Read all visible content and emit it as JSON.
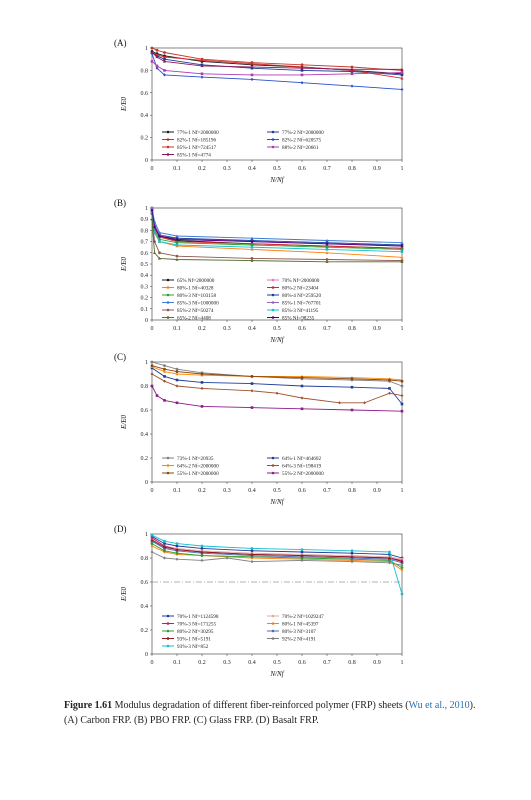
{
  "caption": {
    "figure_label": "Figure 1.61",
    "text_before_cite": "Modulus degradation of different fiber-reinforced polymer (FRP) sheets (",
    "cite": "Wu et al., 2010",
    "text_after_cite": "). (A) Carbon FRP. (B) PBO FRP. (C) Glass FRP. (D) Basalt FRP."
  },
  "chart_data": [
    {
      "type": "line",
      "panel_label": "(A)",
      "xlabel": "N/Nf",
      "ylabel": "E/E0",
      "xlim": [
        0,
        1
      ],
      "ylim": [
        0,
        1
      ],
      "x_ticks": [
        "0",
        "0.1",
        "0.2",
        "0.3",
        "0.4",
        "0.5",
        "0.6",
        "0.7",
        "0.8",
        "0.9",
        "1"
      ],
      "y_ticks": [
        "0",
        "0.2",
        "0.4",
        "0.6",
        "0.8",
        "1"
      ],
      "grid": false,
      "legend_position": "lower-left",
      "series": [
        {
          "name": "77%-1  Nf=2000000",
          "color": "#1a1a1a",
          "x": [
            0,
            0.02,
            0.05,
            0.2,
            0.4,
            0.6,
            0.8,
            1.0
          ],
          "y": [
            0.97,
            0.95,
            0.93,
            0.88,
            0.85,
            0.83,
            0.8,
            0.77
          ]
        },
        {
          "name": "77%-2  Nf=2000000",
          "color": "#1f3d99",
          "x": [
            0,
            0.02,
            0.05,
            0.2,
            0.4,
            0.6,
            0.8,
            1.0
          ],
          "y": [
            0.96,
            0.93,
            0.9,
            0.85,
            0.82,
            0.8,
            0.79,
            0.76
          ]
        },
        {
          "name": "82%-1  Nf=185196",
          "color": "#d62728",
          "x": [
            0,
            0.02,
            0.05,
            0.2,
            0.4,
            0.6,
            0.8,
            1.0
          ],
          "y": [
            0.96,
            0.94,
            0.92,
            0.89,
            0.86,
            0.83,
            0.8,
            0.73
          ]
        },
        {
          "name": "82%-2  Nf=620575",
          "color": "#2a4fcf",
          "x": [
            0,
            0.02,
            0.05,
            0.2,
            0.4,
            0.6,
            0.8,
            1.0
          ],
          "y": [
            0.95,
            0.82,
            0.76,
            0.74,
            0.72,
            0.69,
            0.66,
            0.63
          ]
        },
        {
          "name": "85%-1  Nf=724517",
          "color": "#c0392b",
          "x": [
            0,
            0.02,
            0.05,
            0.2,
            0.4,
            0.6,
            0.8,
            1.0
          ],
          "y": [
            1.0,
            0.98,
            0.96,
            0.9,
            0.87,
            0.85,
            0.83,
            0.8
          ]
        },
        {
          "name": "88%-2  Nf=20661",
          "color": "#b03ab0",
          "x": [
            0,
            0.02,
            0.05,
            0.2,
            0.4,
            0.6,
            0.8,
            1.0
          ],
          "y": [
            0.88,
            0.84,
            0.8,
            0.77,
            0.76,
            0.76,
            0.77,
            0.78
          ]
        },
        {
          "name": "85%-1  Nf=4774",
          "color": "#8b1a5a",
          "x": [
            0,
            0.02,
            0.05,
            0.2,
            0.4,
            0.6,
            0.8,
            1.0
          ],
          "y": [
            0.96,
            0.92,
            0.88,
            0.84,
            0.83,
            0.82,
            0.81,
            0.81
          ]
        }
      ]
    },
    {
      "type": "line",
      "panel_label": "(B)",
      "xlabel": "N/Nf",
      "ylabel": "E/E0",
      "xlim": [
        0,
        1
      ],
      "ylim": [
        0,
        1
      ],
      "x_ticks": [
        "0",
        "0.1",
        "0.2",
        "0.3",
        "0.4",
        "0.5",
        "0.6",
        "0.7",
        "0.8",
        "0.9",
        "1"
      ],
      "y_ticks": [
        "0",
        "0.1",
        "0.2",
        "0.3",
        "0.4",
        "0.5",
        "0.6",
        "0.7",
        "0.8",
        "0.9",
        "1"
      ],
      "grid": false,
      "legend_position": "lower-left",
      "series": [
        {
          "name": "65%  Nf=2000000",
          "color": "#1a1a1a",
          "x": [
            0,
            0.01,
            0.03,
            0.1,
            0.4,
            0.7,
            1.0
          ],
          "y": [
            1.0,
            0.85,
            0.75,
            0.71,
            0.68,
            0.66,
            0.64
          ]
        },
        {
          "name": "70%  Nf=2000000",
          "color": "#e377c2",
          "x": [
            0,
            0.01,
            0.03,
            0.1,
            0.4,
            0.7,
            1.0
          ],
          "y": [
            1.0,
            0.86,
            0.76,
            0.73,
            0.7,
            0.68,
            0.66
          ]
        },
        {
          "name": "80%-1  Nf=40328",
          "color": "#ff7f0e",
          "x": [
            0,
            0.01,
            0.03,
            0.1,
            0.4,
            0.7,
            1.0
          ],
          "y": [
            0.95,
            0.78,
            0.7,
            0.66,
            0.63,
            0.6,
            0.56
          ]
        },
        {
          "name": "80%-2  Nf=23404",
          "color": "#d62728",
          "x": [
            0,
            0.01,
            0.03,
            0.1,
            0.4,
            0.7,
            1.0
          ],
          "y": [
            0.97,
            0.82,
            0.74,
            0.7,
            0.68,
            0.66,
            0.64
          ]
        },
        {
          "name": "80%-3  Nf=103158",
          "color": "#2ca02c",
          "x": [
            0,
            0.01,
            0.03,
            0.1,
            0.4,
            0.7,
            1.0
          ],
          "y": [
            0.96,
            0.8,
            0.72,
            0.69,
            0.67,
            0.65,
            0.63
          ]
        },
        {
          "name": "80%-4  Nf=259520",
          "color": "#1f3d99",
          "x": [
            0,
            0.01,
            0.03,
            0.1,
            0.4,
            0.7,
            1.0
          ],
          "y": [
            0.98,
            0.84,
            0.76,
            0.73,
            0.71,
            0.69,
            0.67
          ]
        },
        {
          "name": "85%-3  Nf=1000000",
          "color": "#3a7bd5",
          "x": [
            0,
            0.01,
            0.03,
            0.1,
            0.4,
            0.7,
            1.0
          ],
          "y": [
            1.0,
            0.88,
            0.78,
            0.75,
            0.73,
            0.71,
            0.69
          ]
        },
        {
          "name": "85%-1  Nf=767701",
          "color": "#9467bd",
          "x": [
            0,
            0.01,
            0.03,
            0.1,
            0.4,
            0.7,
            1.0
          ],
          "y": [
            0.99,
            0.85,
            0.76,
            0.72,
            0.7,
            0.68,
            0.66
          ]
        },
        {
          "name": "85%-2  Nf=50274",
          "color": "#8c564b",
          "x": [
            0,
            0.01,
            0.03,
            0.1,
            0.4,
            0.7,
            1.0
          ],
          "y": [
            0.95,
            0.7,
            0.6,
            0.57,
            0.55,
            0.54,
            0.53
          ]
        },
        {
          "name": "85%-3  Nf=41195",
          "color": "#17becf",
          "x": [
            0,
            0.01,
            0.03,
            0.1,
            0.4,
            0.7,
            1.0
          ],
          "y": [
            0.97,
            0.78,
            0.7,
            0.67,
            0.65,
            0.63,
            0.61
          ]
        },
        {
          "name": "65%-2  Nf=4408",
          "color": "#556b2f",
          "x": [
            0,
            0.01,
            0.03,
            0.1,
            0.4,
            0.7,
            1.0
          ],
          "y": [
            0.9,
            0.6,
            0.55,
            0.54,
            0.53,
            0.52,
            0.52
          ]
        },
        {
          "name": "85%  Nf=98235",
          "color": "#4b0082",
          "x": [
            0,
            0.01,
            0.03,
            0.1,
            0.4,
            0.7,
            1.0
          ],
          "y": [
            0.98,
            0.83,
            0.75,
            0.72,
            0.7,
            0.68,
            0.66
          ]
        }
      ]
    },
    {
      "type": "line",
      "panel_label": "(C)",
      "xlabel": "N/Nf",
      "ylabel": "E/E0",
      "xlim": [
        0,
        1
      ],
      "ylim": [
        0,
        1
      ],
      "x_ticks": [
        "0",
        "0.1",
        "0.2",
        "0.3",
        "0.4",
        "0.5",
        "0.6",
        "0.7",
        "0.8",
        "0.9",
        "1"
      ],
      "y_ticks": [
        "0",
        "0.2",
        "0.4",
        "0.6",
        "0.8",
        "1"
      ],
      "grid": false,
      "legend_position": "lower-left",
      "series": [
        {
          "name": "73%-1  Nf=20935",
          "color": "#7f7f7f",
          "x": [
            0,
            0.05,
            0.1,
            0.2,
            0.4,
            0.6,
            0.8,
            0.95,
            1.0
          ],
          "y": [
            1.0,
            0.97,
            0.94,
            0.91,
            0.88,
            0.86,
            0.85,
            0.84,
            0.8
          ]
        },
        {
          "name": "64%-1  Nf=464602",
          "color": "#1f3d99",
          "x": [
            0,
            0.05,
            0.1,
            0.2,
            0.4,
            0.6,
            0.8,
            0.95,
            1.0
          ],
          "y": [
            0.95,
            0.88,
            0.85,
            0.83,
            0.82,
            0.8,
            0.79,
            0.78,
            0.65
          ]
        },
        {
          "name": "64%-2  Nf=2000000",
          "color": "#ff8c00",
          "x": [
            0,
            0.05,
            0.1,
            0.2,
            0.4,
            0.6,
            0.8,
            0.95,
            1.0
          ],
          "y": [
            0.96,
            0.92,
            0.9,
            0.89,
            0.88,
            0.88,
            0.87,
            0.86,
            0.85
          ]
        },
        {
          "name": "64%-3  Nf=198419",
          "color": "#a0522d",
          "x": [
            0,
            0.05,
            0.1,
            0.2,
            0.4,
            0.5,
            0.6,
            0.75,
            0.85,
            0.95,
            1.0
          ],
          "y": [
            0.9,
            0.84,
            0.8,
            0.78,
            0.76,
            0.74,
            0.7,
            0.66,
            0.66,
            0.74,
            0.72
          ]
        },
        {
          "name": "55%-1  Nf=2000000",
          "color": "#8b4513",
          "x": [
            0,
            0.05,
            0.1,
            0.2,
            0.4,
            0.6,
            0.8,
            0.95,
            1.0
          ],
          "y": [
            0.97,
            0.94,
            0.92,
            0.9,
            0.88,
            0.87,
            0.86,
            0.85,
            0.84
          ]
        },
        {
          "name": "55%-2  Nf=2000000",
          "color": "#8b1a8b",
          "x": [
            0,
            0.02,
            0.05,
            0.1,
            0.2,
            0.4,
            0.6,
            0.8,
            1.0
          ],
          "y": [
            0.8,
            0.72,
            0.68,
            0.66,
            0.63,
            0.62,
            0.61,
            0.6,
            0.59
          ]
        }
      ]
    },
    {
      "type": "line",
      "panel_label": "(D)",
      "xlabel": "N/Nf",
      "ylabel": "E/E0",
      "xlim": [
        0,
        1
      ],
      "ylim": [
        0,
        1
      ],
      "x_ticks": [
        "0",
        "0.1",
        "0.2",
        "0.3",
        "0.4",
        "0.5",
        "0.6",
        "0.7",
        "0.8",
        "0.9",
        "1"
      ],
      "y_ticks": [
        "0",
        "0.2",
        "0.4",
        "0.6",
        "0.8",
        "1"
      ],
      "grid": false,
      "legend_position": "lower-left",
      "series": [
        {
          "name": "70%-1  Nf=1124598",
          "color": "#1f3d99",
          "x": [
            0,
            0.05,
            0.1,
            0.2,
            0.4,
            0.6,
            0.8,
            0.95,
            1.0
          ],
          "y": [
            0.98,
            0.92,
            0.9,
            0.88,
            0.86,
            0.85,
            0.84,
            0.83,
            0.8
          ]
        },
        {
          "name": "70%-2  Nf=1029247",
          "color": "#e8a9a0",
          "x": [
            0,
            0.05,
            0.1,
            0.2,
            0.4,
            0.6,
            0.8,
            0.95,
            1.0
          ],
          "y": [
            0.96,
            0.9,
            0.88,
            0.86,
            0.84,
            0.83,
            0.82,
            0.81,
            0.79
          ]
        },
        {
          "name": "70%-3  Nf=171255",
          "color": "#c2187a",
          "x": [
            0,
            0.05,
            0.1,
            0.2,
            0.4,
            0.6,
            0.8,
            0.95,
            1.0
          ],
          "y": [
            0.97,
            0.9,
            0.87,
            0.85,
            0.83,
            0.82,
            0.81,
            0.8,
            0.78
          ]
        },
        {
          "name": "80%-1  Nf=45397",
          "color": "#ff7f0e",
          "x": [
            0,
            0.05,
            0.1,
            0.2,
            0.4,
            0.6,
            0.8,
            0.95,
            1.0
          ],
          "y": [
            0.9,
            0.85,
            0.83,
            0.82,
            0.8,
            0.79,
            0.78,
            0.77,
            0.7
          ]
        },
        {
          "name": "80%-2  Nf=30295",
          "color": "#2ca02c",
          "x": [
            0,
            0.05,
            0.1,
            0.2,
            0.4,
            0.6,
            0.8,
            0.95,
            1.0
          ],
          "y": [
            0.92,
            0.86,
            0.84,
            0.82,
            0.81,
            0.8,
            0.79,
            0.78,
            0.72
          ]
        },
        {
          "name": "80%-3  Nf=3107",
          "color": "#4b6cb7",
          "x": [
            0,
            0.05,
            0.1,
            0.2,
            0.4,
            0.6,
            0.8,
            0.95,
            1.0
          ],
          "y": [
            0.94,
            0.88,
            0.86,
            0.84,
            0.82,
            0.81,
            0.8,
            0.79,
            0.76
          ]
        },
        {
          "name": "93%-1  Nf=5191",
          "color": "#8b1a1a",
          "x": [
            0,
            0.05,
            0.1,
            0.2,
            0.4,
            0.6,
            0.8,
            0.95,
            1.0
          ],
          "y": [
            0.95,
            0.89,
            0.87,
            0.85,
            0.83,
            0.82,
            0.81,
            0.8,
            0.77
          ]
        },
        {
          "name": "92%-2  Nf=4191",
          "color": "#7f7f7f",
          "x": [
            0,
            0.05,
            0.1,
            0.2,
            0.3,
            0.4,
            0.6,
            0.8,
            0.95,
            1.0
          ],
          "y": [
            0.85,
            0.8,
            0.79,
            0.78,
            0.8,
            0.77,
            0.78,
            0.77,
            0.76,
            0.74
          ]
        },
        {
          "name": "93%-3  Nf=852",
          "color": "#17becf",
          "x": [
            0,
            0.05,
            0.1,
            0.2,
            0.4,
            0.6,
            0.8,
            0.95,
            1.0
          ],
          "y": [
            0.99,
            0.94,
            0.92,
            0.9,
            0.88,
            0.87,
            0.86,
            0.85,
            0.5
          ]
        }
      ]
    }
  ]
}
